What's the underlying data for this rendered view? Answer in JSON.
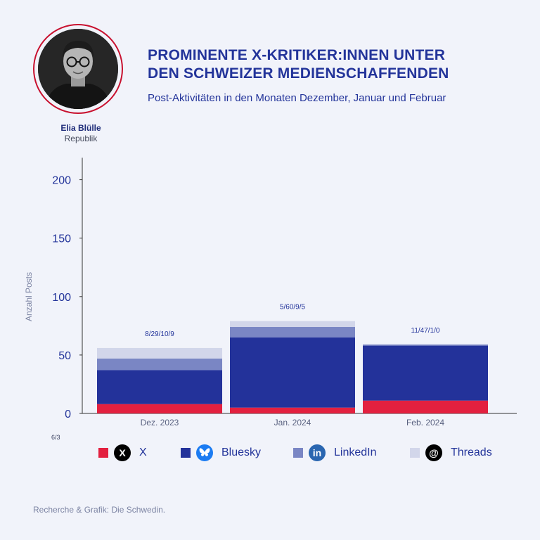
{
  "person": {
    "name": "Elia Blülle",
    "organization": "Republik"
  },
  "header": {
    "title_line1": "PROMINENTE X-KRITIKER:INNEN UNTER",
    "title_line2": "DEN SCHWEIZER MEDIENSCHAFFENDEN",
    "subtitle": "Post-Aktivitäten in den Monaten Dezember, Januar und Februar"
  },
  "chart_data": {
    "type": "bar",
    "stacked": true,
    "categories": [
      "Dez. 2023",
      "Jan. 2024",
      "Feb. 2024"
    ],
    "series": [
      {
        "name": "X",
        "values": [
          8,
          5,
          11
        ],
        "color": "#e3203f"
      },
      {
        "name": "Bluesky",
        "values": [
          29,
          60,
          47
        ],
        "color": "#23329a"
      },
      {
        "name": "LinkedIn",
        "values": [
          10,
          9,
          1
        ],
        "color": "#7a86c4"
      },
      {
        "name": "Threads",
        "values": [
          9,
          5,
          0
        ],
        "color": "#d2d6ea"
      }
    ],
    "bar_labels": [
      "8/29/10/9",
      "5/60/9/5",
      "11/47/1/0"
    ],
    "ylabel": "Anzahl Posts",
    "ylim": [
      0,
      220
    ],
    "yticks": [
      0,
      50,
      100,
      150,
      200
    ],
    "grid": false
  },
  "legend": {
    "items": [
      {
        "label": "X",
        "icon": "x-logo-icon",
        "glyph": "X"
      },
      {
        "label": "Bluesky",
        "icon": "bluesky-butterfly-icon",
        "glyph": ""
      },
      {
        "label": "LinkedIn",
        "icon": "linkedin-logo-icon",
        "glyph": "in"
      },
      {
        "label": "Threads",
        "icon": "threads-logo-icon",
        "glyph": "@"
      }
    ]
  },
  "stray_note": "6/3",
  "footer": "Recherche & Grafik: Die Schwedin."
}
